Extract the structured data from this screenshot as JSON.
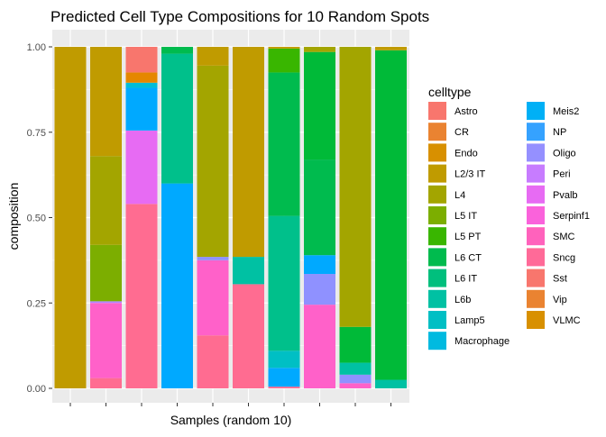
{
  "chart_data": {
    "type": "bar",
    "stacked": true,
    "title": "Predicted Cell Type Compositions for 10 Random Spots",
    "xlabel": "Samples (random 10)",
    "ylabel": "composition",
    "ylim": [
      0,
      1
    ],
    "yticks": [
      "0.00",
      "0.25",
      "0.50",
      "0.75",
      "1.00"
    ],
    "grid": true,
    "legend_position": "right",
    "legend_title": "celltype",
    "categories": [
      "",
      "",
      "",
      "",
      "",
      "",
      "",
      "",
      "",
      ""
    ],
    "celltypes": [
      {
        "name": "Astro",
        "color": "#F8766D"
      },
      {
        "name": "CR",
        "color": "#EA8331"
      },
      {
        "name": "Endo",
        "color": "#D89000"
      },
      {
        "name": "L2/3 IT",
        "color": "#C09B00"
      },
      {
        "name": "L4",
        "color": "#A3A500"
      },
      {
        "name": "L5 IT",
        "color": "#7CAE00"
      },
      {
        "name": "L5 PT",
        "color": "#39B600"
      },
      {
        "name": "L6 CT",
        "color": "#00BB4E"
      },
      {
        "name": "L6 IT",
        "color": "#00BF7D"
      },
      {
        "name": "L6b",
        "color": "#00C1A3"
      },
      {
        "name": "Lamp5",
        "color": "#00BFC4"
      },
      {
        "name": "Macrophage",
        "color": "#00BAE0"
      },
      {
        "name": "Meis2",
        "color": "#00B0F6"
      },
      {
        "name": "NP",
        "color": "#35A2FF"
      },
      {
        "name": "Oligo",
        "color": "#9590FF"
      },
      {
        "name": "Peri",
        "color": "#C77CFF"
      },
      {
        "name": "Pvalb",
        "color": "#E76BF3"
      },
      {
        "name": "Serpinf1",
        "color": "#FA62DB"
      },
      {
        "name": "SMC",
        "color": "#FF62BC"
      },
      {
        "name": "Sncg",
        "color": "#FF6A98"
      },
      {
        "name": "Sst",
        "color": "#F8766D"
      },
      {
        "name": "Vip",
        "color": "#EA8331"
      },
      {
        "name": "VLMC",
        "color": "#D89000"
      }
    ],
    "legend_columns": [
      [
        {
          "label": "Astro",
          "color": "#F8766D"
        },
        {
          "label": "CR",
          "color": "#EA8331"
        },
        {
          "label": "Endo",
          "color": "#D89000"
        },
        {
          "label": "L2/3 IT",
          "color": "#C09B00"
        },
        {
          "label": "L4",
          "color": "#A3A500"
        },
        {
          "label": "L5 IT",
          "color": "#7CAE00"
        },
        {
          "label": "L5 PT",
          "color": "#39B600"
        },
        {
          "label": "L6 CT",
          "color": "#00BB4E"
        },
        {
          "label": "L6 IT",
          "color": "#00BF7D"
        },
        {
          "label": "L6b",
          "color": "#00C1A3"
        },
        {
          "label": "Lamp5",
          "color": "#00BFC4"
        },
        {
          "label": "Macrophage",
          "color": "#00BAE0"
        }
      ],
      [
        {
          "label": "Meis2",
          "color": "#00B0F6"
        },
        {
          "label": "NP",
          "color": "#35A2FF"
        },
        {
          "label": "Oligo",
          "color": "#9590FF"
        },
        {
          "label": "Peri",
          "color": "#C77CFF"
        },
        {
          "label": "Pvalb",
          "color": "#E76BF3"
        },
        {
          "label": "Serpinf1",
          "color": "#FA62DB"
        },
        {
          "label": "SMC",
          "color": "#FF62BC"
        },
        {
          "label": "Sncg",
          "color": "#FF6A98"
        },
        {
          "label": "Sst",
          "color": "#F8766D"
        },
        {
          "label": "Vip",
          "color": "#EA8331"
        },
        {
          "label": "VLMC",
          "color": "#D89000"
        }
      ]
    ],
    "bars": [
      {
        "segments": [
          {
            "celltype": "L2/3 IT",
            "from": 0.0,
            "to": 1.0,
            "color": "#C09B00"
          }
        ]
      },
      {
        "segments": [
          {
            "celltype": "Vip",
            "from": 0.0,
            "to": 0.03,
            "color": "#FF6C91"
          },
          {
            "celltype": "Sst",
            "from": 0.03,
            "to": 0.25,
            "color": "#FF61C9"
          },
          {
            "celltype": "SMC",
            "from": 0.25,
            "to": 0.255,
            "color": "#B385FF"
          },
          {
            "celltype": "L5 IT",
            "from": 0.255,
            "to": 0.42,
            "color": "#7CAE00"
          },
          {
            "celltype": "L4",
            "from": 0.42,
            "to": 0.68,
            "color": "#A3A500"
          },
          {
            "celltype": "L2/3 IT",
            "from": 0.68,
            "to": 1.0,
            "color": "#C09B00"
          }
        ]
      },
      {
        "segments": [
          {
            "celltype": "VLMC",
            "from": 0.0,
            "to": 0.54,
            "color": "#FF6C91"
          },
          {
            "celltype": "SMC",
            "from": 0.54,
            "to": 0.755,
            "color": "#E76BF3"
          },
          {
            "celltype": "Oligo",
            "from": 0.755,
            "to": 0.88,
            "color": "#00A9FF"
          },
          {
            "celltype": "NP",
            "from": 0.88,
            "to": 0.895,
            "color": "#00BCD8"
          },
          {
            "celltype": "Endo",
            "from": 0.895,
            "to": 0.925,
            "color": "#E58700"
          },
          {
            "celltype": "Astro",
            "from": 0.925,
            "to": 1.0,
            "color": "#F8766D"
          }
        ]
      },
      {
        "segments": [
          {
            "celltype": "Oligo",
            "from": 0.0,
            "to": 0.6,
            "color": "#00A9FF"
          },
          {
            "celltype": "L6b",
            "from": 0.6,
            "to": 0.98,
            "color": "#00C08B"
          },
          {
            "celltype": "L6 IT",
            "from": 0.98,
            "to": 1.0,
            "color": "#00BB4E"
          }
        ]
      },
      {
        "segments": [
          {
            "celltype": "Vip",
            "from": 0.0,
            "to": 0.155,
            "color": "#FF6C91"
          },
          {
            "celltype": "Sst",
            "from": 0.155,
            "to": 0.375,
            "color": "#FF61C9"
          },
          {
            "celltype": "Pvalb",
            "from": 0.375,
            "to": 0.385,
            "color": "#8F91FF"
          },
          {
            "celltype": "L5 IT",
            "from": 0.385,
            "to": 0.945,
            "color": "#A3A500"
          },
          {
            "celltype": "L2/3 IT",
            "from": 0.945,
            "to": 1.0,
            "color": "#C09B00"
          }
        ]
      },
      {
        "segments": [
          {
            "celltype": "VLMC",
            "from": 0.0,
            "to": 0.305,
            "color": "#FF6C91"
          },
          {
            "celltype": "Lamp5",
            "from": 0.305,
            "to": 0.385,
            "color": "#00C1A3"
          },
          {
            "celltype": "L2/3 IT",
            "from": 0.385,
            "to": 1.0,
            "color": "#C09B00"
          }
        ]
      },
      {
        "segments": [
          {
            "celltype": "VLMC",
            "from": 0.0,
            "to": 0.005,
            "color": "#FF6C91"
          },
          {
            "celltype": "Oligo",
            "from": 0.005,
            "to": 0.06,
            "color": "#00A9FF"
          },
          {
            "celltype": "Macrophage",
            "from": 0.06,
            "to": 0.11,
            "color": "#00BFC4"
          },
          {
            "celltype": "L6b",
            "from": 0.11,
            "to": 0.505,
            "color": "#00C08B"
          },
          {
            "celltype": "L6 CT",
            "from": 0.505,
            "to": 0.925,
            "color": "#00BB4E"
          },
          {
            "celltype": "L5 PT",
            "from": 0.925,
            "to": 0.995,
            "color": "#39B600"
          },
          {
            "celltype": "L2/3 IT",
            "from": 0.995,
            "to": 1.0,
            "color": "#C09B00"
          }
        ]
      },
      {
        "segments": [
          {
            "celltype": "Sst",
            "from": 0.0,
            "to": 0.245,
            "color": "#FF61C9"
          },
          {
            "celltype": "Pvalb",
            "from": 0.245,
            "to": 0.335,
            "color": "#8F91FF"
          },
          {
            "celltype": "Oligo",
            "from": 0.335,
            "to": 0.39,
            "color": "#00A9FF"
          },
          {
            "celltype": "L6 IT",
            "from": 0.39,
            "to": 0.67,
            "color": "#00BB4E"
          },
          {
            "celltype": "L6 CT",
            "from": 0.67,
            "to": 0.985,
            "color": "#00BA38"
          },
          {
            "celltype": "L4",
            "from": 0.985,
            "to": 1.0,
            "color": "#A3A500"
          }
        ]
      },
      {
        "segments": [
          {
            "celltype": "Sst",
            "from": 0.0,
            "to": 0.015,
            "color": "#FF61C9"
          },
          {
            "celltype": "Pvalb",
            "from": 0.015,
            "to": 0.04,
            "color": "#8F91FF"
          },
          {
            "celltype": "Lamp5",
            "from": 0.04,
            "to": 0.075,
            "color": "#00C1A3"
          },
          {
            "celltype": "L6 IT",
            "from": 0.075,
            "to": 0.18,
            "color": "#00BA38"
          },
          {
            "celltype": "L5 IT",
            "from": 0.18,
            "to": 1.0,
            "color": "#A3A500"
          }
        ]
      },
      {
        "segments": [
          {
            "celltype": "Lamp5",
            "from": 0.0,
            "to": 0.025,
            "color": "#00C1A3"
          },
          {
            "celltype": "L6 IT",
            "from": 0.025,
            "to": 0.99,
            "color": "#00BA38"
          },
          {
            "celltype": "L4",
            "from": 0.99,
            "to": 1.0,
            "color": "#C09B00"
          }
        ]
      }
    ]
  }
}
